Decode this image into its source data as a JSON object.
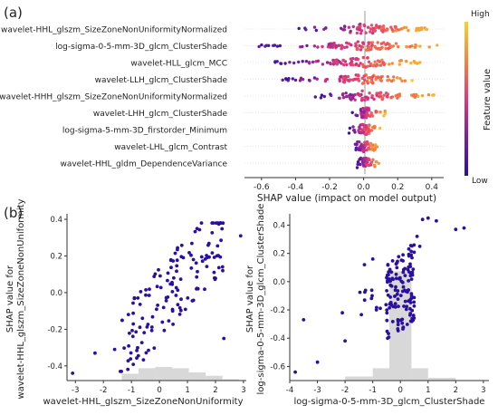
{
  "panel_a": {
    "label": "(a)"
  },
  "panel_b": {
    "label": "(b)"
  },
  "colorbar": {
    "high_label": "High",
    "low_label": "Low",
    "title": "Feature value"
  },
  "colors": {
    "low": "#2b0fa0",
    "mid": "#e0387a",
    "high": "#f5d230",
    "hist": "#d8d8d8"
  },
  "chart_data": [
    {
      "type": "scatter",
      "subtype": "shap-beeswarm",
      "xlabel": "SHAP value (impact on model output)",
      "xlim": [
        -0.7,
        0.47
      ],
      "xticks": [
        "-0.6",
        "-0.4",
        "-0.2",
        "0.0",
        "0.2",
        "0.4"
      ],
      "features": [
        {
          "name": "wavelet-HHL_glszm_SizeZoneNonUniformityNormalized",
          "range": [
            -0.38,
            0.4
          ]
        },
        {
          "name": "log-sigma-0-5-mm-3D_glcm_ClusterShade",
          "range": [
            -0.63,
            0.45
          ]
        },
        {
          "name": "wavelet-HLL_glcm_MCC",
          "range": [
            -0.52,
            0.35
          ]
        },
        {
          "name": "wavelet-LLH_glcm_ClusterShade",
          "range": [
            -0.48,
            0.3
          ]
        },
        {
          "name": "wavelet-HHH_glszm_SizeZoneNonUniformityNormalized",
          "range": [
            -0.3,
            0.42
          ]
        },
        {
          "name": "wavelet-LHH_glcm_ClusterShade",
          "range": [
            -0.07,
            0.13
          ]
        },
        {
          "name": "log-sigma-5-mm-3D_firstorder_Minimum",
          "range": [
            -0.09,
            0.1
          ]
        },
        {
          "name": "wavelet-LHL_glcm_Contrast",
          "range": [
            -0.05,
            0.08
          ]
        },
        {
          "name": "wavelet-HHL_gldm_DependenceVariance",
          "range": [
            -0.04,
            0.09
          ]
        }
      ]
    },
    {
      "type": "scatter",
      "subtype": "shap-dependence",
      "xlabel": "wavelet-HHL_glszm_SizeZoneNonUniformity",
      "ylabel": "SHAP value for\nwavelet-HHL_glszm_SizeZoneNonUniformity",
      "xlim": [
        -3.3,
        3.1
      ],
      "ylim": [
        -0.48,
        0.43
      ],
      "xticks": [
        -3,
        -2,
        -1,
        0,
        1,
        2,
        3
      ],
      "yticks": [
        -0.4,
        -0.2,
        0.0,
        0.2,
        0.4
      ],
      "hist_bins_x": [
        -1.35,
        -0.75,
        -0.15,
        0.45,
        1.05,
        1.65,
        2.25,
        2.85
      ],
      "hist_heights": [
        0.05,
        0.09,
        0.1,
        0.09,
        0.06,
        0.035,
        0.01
      ]
    },
    {
      "type": "scatter",
      "subtype": "shap-dependence",
      "xlabel": "log-sigma-0-5-mm-3D_glcm_ClusterShade",
      "ylabel": "SHAP value for\nlog-sigma-0-5-mm-3D_glcm_ClusterShade",
      "xlim": [
        -4.0,
        3.2
      ],
      "ylim": [
        -0.7,
        0.48
      ],
      "xticks": [
        -4,
        -3,
        -2,
        -1,
        0,
        1,
        2,
        3
      ],
      "yticks": [
        -0.6,
        -0.4,
        -0.2,
        0.0,
        0.2,
        0.4
      ],
      "hist_bins_x": [
        -2.0,
        -1.0,
        -0.4,
        0.4,
        1.0,
        2.0
      ],
      "hist_heights": [
        0.03,
        0.09,
        0.8,
        0.09,
        0.02
      ]
    }
  ]
}
